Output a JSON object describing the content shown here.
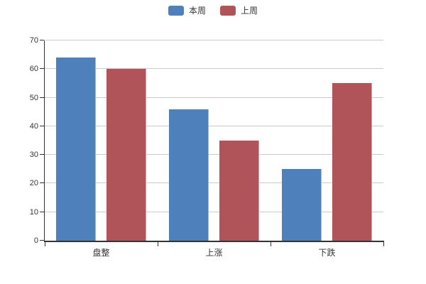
{
  "chart_data": {
    "type": "bar",
    "title": "",
    "categories": [
      "盘整",
      "上涨",
      "下跌"
    ],
    "series": [
      {
        "name": "本周",
        "color": "#4e80bc",
        "values": [
          64,
          46,
          25
        ]
      },
      {
        "name": "上周",
        "color": "#b05459",
        "values": [
          60,
          35,
          55
        ]
      }
    ],
    "xlabel": "",
    "ylabel": "",
    "ylim": [
      0,
      70
    ],
    "ytick_step": 10,
    "grid": true,
    "legend_position": "top"
  },
  "style": {
    "axis_color": "#333333",
    "grid_color": "#cccccc",
    "text_color": "#333333",
    "background": "#ffffff"
  }
}
